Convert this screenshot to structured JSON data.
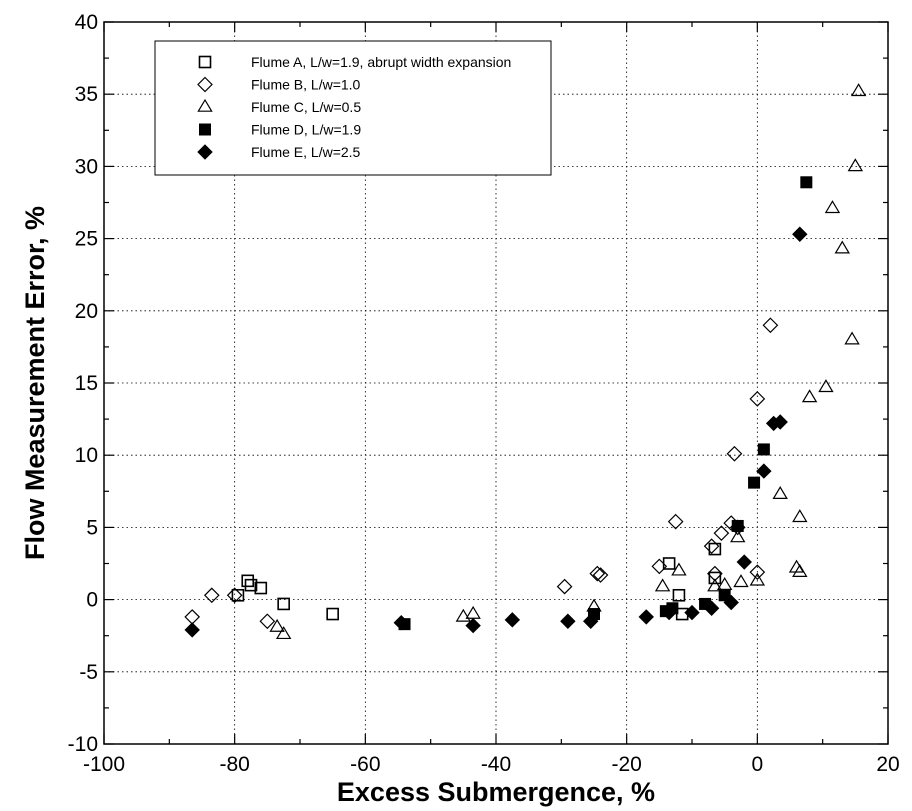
{
  "chart_data": {
    "type": "scatter",
    "title": "",
    "xlabel": "Excess Submergence, %",
    "ylabel": "Flow Measurement Error, %",
    "xlim": [
      -100,
      20
    ],
    "ylim": [
      -10,
      40
    ],
    "xticks": [
      "-100",
      "-80",
      "-60",
      "-40",
      "-20",
      "0",
      "20"
    ],
    "yticks": [
      "-10",
      "-5",
      "0",
      "5",
      "10",
      "15",
      "20",
      "25",
      "30",
      "35",
      "40"
    ],
    "grid": true,
    "legend_position": "top-left",
    "series": [
      {
        "name": "Flume A, L/w=1.9, abrupt width expansion",
        "marker": "square-open",
        "points": [
          [
            -79.5,
            0.3
          ],
          [
            -78,
            1.3
          ],
          [
            -77.5,
            1.0
          ],
          [
            -76,
            0.8
          ],
          [
            -72.5,
            -0.3
          ],
          [
            -65,
            -1.0
          ],
          [
            -13.5,
            2.5
          ],
          [
            -12,
            0.3
          ],
          [
            -11.5,
            -1.0
          ],
          [
            -6.5,
            3.5
          ],
          [
            -6.5,
            1.5
          ]
        ]
      },
      {
        "name": "Flume B, L/w=1.0",
        "marker": "diamond-open",
        "points": [
          [
            -86.5,
            -1.2
          ],
          [
            -83.5,
            0.3
          ],
          [
            -80,
            0.3
          ],
          [
            -75,
            -1.5
          ],
          [
            -29.5,
            0.9
          ],
          [
            -24.5,
            1.8
          ],
          [
            -24,
            1.7
          ],
          [
            -15,
            2.3
          ],
          [
            -12.5,
            5.4
          ],
          [
            -7,
            3.7
          ],
          [
            -6.5,
            1.8
          ],
          [
            -5.5,
            4.6
          ],
          [
            -4,
            5.3
          ],
          [
            -3.5,
            10.1
          ],
          [
            -3,
            5.0
          ],
          [
            0,
            13.9
          ],
          [
            2,
            19.0
          ],
          [
            0,
            1.9
          ]
        ]
      },
      {
        "name": "Flume C, L/w=0.5",
        "marker": "triangle-open",
        "points": [
          [
            -73.5,
            -1.9
          ],
          [
            -72.5,
            -2.4
          ],
          [
            -45,
            -1.2
          ],
          [
            -43.5,
            -1.0
          ],
          [
            -25,
            -0.5
          ],
          [
            -14.5,
            0.9
          ],
          [
            -12,
            2.0
          ],
          [
            -6.5,
            0.9
          ],
          [
            -5,
            1.0
          ],
          [
            -3,
            4.3
          ],
          [
            -2.5,
            1.2
          ],
          [
            0,
            1.3
          ],
          [
            3.5,
            7.3
          ],
          [
            6,
            2.2
          ],
          [
            6.5,
            1.9
          ],
          [
            6.5,
            5.7
          ],
          [
            8,
            14.0
          ],
          [
            10.5,
            14.7
          ],
          [
            11.5,
            27.1
          ],
          [
            13,
            24.3
          ],
          [
            14.5,
            18.0
          ],
          [
            15,
            30.0
          ],
          [
            15.5,
            35.2
          ]
        ]
      },
      {
        "name": "Flume D, L/w=1.9",
        "marker": "square-filled",
        "points": [
          [
            -54,
            -1.7
          ],
          [
            -25,
            -1.0
          ],
          [
            -14,
            -0.8
          ],
          [
            -13,
            -0.6
          ],
          [
            -8,
            -0.3
          ],
          [
            -5,
            0.3
          ],
          [
            -3,
            5.1
          ],
          [
            -0.5,
            8.1
          ],
          [
            1,
            10.4
          ],
          [
            7.5,
            28.9
          ]
        ]
      },
      {
        "name": "Flume E, L/w=2.5",
        "marker": "diamond-filled",
        "points": [
          [
            -86.5,
            -2.1
          ],
          [
            -54.5,
            -1.6
          ],
          [
            -43.5,
            -1.8
          ],
          [
            -37.5,
            -1.4
          ],
          [
            -29,
            -1.5
          ],
          [
            -25.5,
            -1.5
          ],
          [
            -17,
            -1.2
          ],
          [
            -13.5,
            -0.9
          ],
          [
            -10,
            -0.9
          ],
          [
            -7,
            -0.6
          ],
          [
            -4,
            -0.2
          ],
          [
            -2,
            2.6
          ],
          [
            1,
            8.9
          ],
          [
            2.5,
            12.2
          ],
          [
            3.5,
            12.3
          ],
          [
            6.5,
            25.3
          ]
        ]
      }
    ]
  }
}
